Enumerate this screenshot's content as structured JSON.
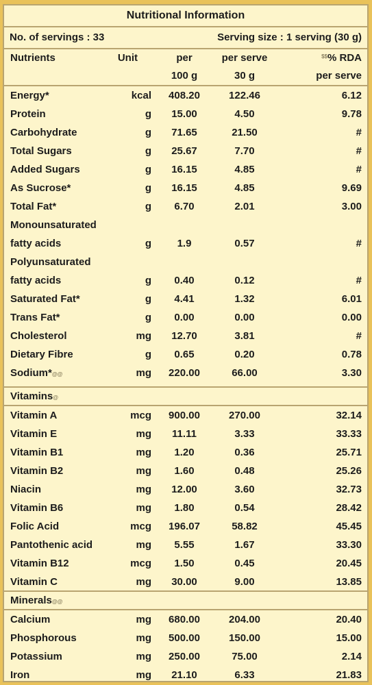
{
  "title": "Nutritional Information",
  "servings": {
    "count": "No. of servings : 33",
    "size": "Serving size : 1 serving (30 g)"
  },
  "header": {
    "nutrients": "Nutrients",
    "unit": "Unit",
    "per100_l1": "per",
    "per100_l2": "100 g",
    "perserve_l1": "per serve",
    "perserve_l2": "30 g",
    "rda_sup": "$$",
    "rda_l1": "% RDA",
    "rda_l2": "per serve"
  },
  "nutrients": [
    {
      "name": "Energy*",
      "unit": "kcal",
      "p100": "408.20",
      "pserve": "122.46",
      "rda": "6.12"
    },
    {
      "name": "Protein",
      "unit": "g",
      "p100": "15.00",
      "pserve": "4.50",
      "rda": "9.78"
    },
    {
      "name": "Carbohydrate",
      "unit": "g",
      "p100": "71.65",
      "pserve": "21.50",
      "rda": "#"
    },
    {
      "name": "Total Sugars",
      "unit": "g",
      "p100": "25.67",
      "pserve": "7.70",
      "rda": "#"
    },
    {
      "name": "Added Sugars",
      "unit": "g",
      "p100": "16.15",
      "pserve": "4.85",
      "rda": "#"
    },
    {
      "name": "As Sucrose*",
      "unit": "g",
      "p100": "16.15",
      "pserve": "4.85",
      "rda": "9.69"
    },
    {
      "name": "Total Fat*",
      "unit": "g",
      "p100": "6.70",
      "pserve": "2.01",
      "rda": "3.00"
    },
    {
      "name": "Monounsaturated",
      "unit": "",
      "p100": "",
      "pserve": "",
      "rda": ""
    },
    {
      "name": "fatty acids",
      "unit": "g",
      "p100": "1.9",
      "pserve": "0.57",
      "rda": "#"
    },
    {
      "name": "Polyunsaturated",
      "unit": "",
      "p100": "",
      "pserve": "",
      "rda": ""
    },
    {
      "name": "fatty acids",
      "unit": "g",
      "p100": "0.40",
      "pserve": "0.12",
      "rda": "#"
    },
    {
      "name": "Saturated Fat*",
      "unit": "g",
      "p100": "4.41",
      "pserve": "1.32",
      "rda": "6.01"
    },
    {
      "name": "Trans Fat*",
      "unit": "g",
      "p100": "0.00",
      "pserve": "0.00",
      "rda": "0.00"
    },
    {
      "name": "Cholesterol",
      "unit": "mg",
      "p100": "12.70",
      "pserve": "3.81",
      "rda": "#"
    },
    {
      "name": "Dietary Fibre",
      "unit": "g",
      "p100": "0.65",
      "pserve": "0.20",
      "rda": "0.78"
    },
    {
      "name": "Sodium*",
      "sup": "@@",
      "unit": "mg",
      "p100": "220.00",
      "pserve": "66.00",
      "rda": "3.30"
    }
  ],
  "vitamins": {
    "label": "Vitamins",
    "sup": "@",
    "rows": [
      {
        "name": "Vitamin A",
        "unit": "mcg",
        "p100": "900.00",
        "pserve": "270.00",
        "rda": "32.14"
      },
      {
        "name": "Vitamin E",
        "unit": "mg",
        "p100": "11.11",
        "pserve": "3.33",
        "rda": "33.33"
      },
      {
        "name": "Vitamin B1",
        "unit": "mg",
        "p100": "1.20",
        "pserve": "0.36",
        "rda": "25.71"
      },
      {
        "name": "Vitamin B2",
        "unit": "mg",
        "p100": "1.60",
        "pserve": "0.48",
        "rda": "25.26"
      },
      {
        "name": "Niacin",
        "unit": "mg",
        "p100": "12.00",
        "pserve": "3.60",
        "rda": "32.73"
      },
      {
        "name": "Vitamin B6",
        "unit": "mg",
        "p100": "1.80",
        "pserve": "0.54",
        "rda": "28.42"
      },
      {
        "name": "Folic Acid",
        "unit": "mcg",
        "p100": "196.07",
        "pserve": "58.82",
        "rda": "45.45"
      },
      {
        "name": "Pantothenic acid",
        "unit": "mg",
        "p100": "5.55",
        "pserve": "1.67",
        "rda": "33.30"
      },
      {
        "name": "Vitamin B12",
        "unit": "mcg",
        "p100": "1.50",
        "pserve": "0.45",
        "rda": "20.45"
      },
      {
        "name": "Vitamin C",
        "unit": "mg",
        "p100": "30.00",
        "pserve": "9.00",
        "rda": "13.85"
      }
    ]
  },
  "minerals": {
    "label": "Minerals",
    "sup": "@@",
    "rows": [
      {
        "name": "Calcium",
        "unit": "mg",
        "p100": "680.00",
        "pserve": "204.00",
        "rda": "20.40"
      },
      {
        "name": "Phosphorous",
        "unit": "mg",
        "p100": "500.00",
        "pserve": "150.00",
        "rda": "15.00"
      },
      {
        "name": "Potassium",
        "unit": "mg",
        "p100": "250.00",
        "pserve": "75.00",
        "rda": "2.14"
      },
      {
        "name": "Iron",
        "unit": "mg",
        "p100": "21.10",
        "pserve": "6.33",
        "rda": "21.83"
      }
    ]
  },
  "colors": {
    "panel": "#fdf5cb",
    "border": "#b8a470",
    "background": "#e9c25a"
  }
}
